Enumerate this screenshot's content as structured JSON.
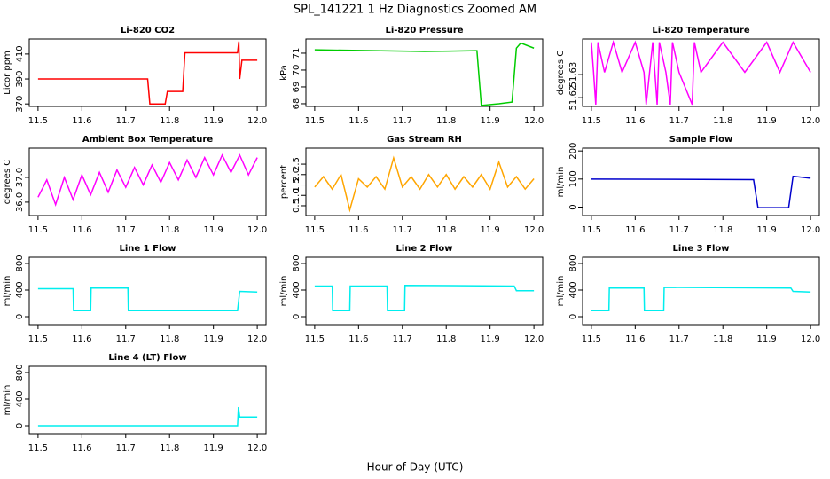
{
  "title": "SPL_141221  1 Hz Diagnostics Zoomed AM",
  "xlabel": "Hour of Day (UTC)",
  "chart_data": [
    {
      "type": "line",
      "title": "Li-820 CO2",
      "ylabel": "Licor ppm",
      "xlim": [
        11.48,
        12.02
      ],
      "ylim": [
        368,
        422
      ],
      "xticks": [
        11.5,
        11.6,
        11.7,
        11.8,
        11.9,
        {
          "value": 12,
          "label": "12.0"
        }
      ],
      "yticks": [
        370,
        390,
        410
      ],
      "x": [
        11.5,
        11.75,
        11.755,
        11.79,
        11.795,
        11.83,
        11.835,
        11.955,
        11.958,
        11.96,
        11.965,
        12.0
      ],
      "series": [
        {
          "color": "#ff0000",
          "values": [
            390,
            390,
            370,
            370,
            380,
            380,
            411,
            411,
            420,
            390,
            405,
            405
          ]
        }
      ]
    },
    {
      "type": "line",
      "title": "Li-820 Pressure",
      "ylabel": "kPa",
      "xlim": [
        11.48,
        12.02
      ],
      "ylim": [
        67.84,
        71.84
      ],
      "xticks": [
        11.5,
        11.6,
        11.7,
        11.8,
        11.9,
        {
          "value": 12,
          "label": "12.0"
        }
      ],
      "yticks": [
        68,
        69,
        70,
        71
      ],
      "x": [
        11.5,
        11.75,
        11.87,
        11.88,
        11.92,
        11.95,
        11.96,
        11.97,
        12.0
      ],
      "series": [
        {
          "color": "#00cc00",
          "values": [
            71.2,
            71.1,
            71.15,
            67.9,
            68.0,
            68.1,
            71.3,
            71.6,
            71.3
          ]
        }
      ]
    },
    {
      "type": "line",
      "title": "Li-820 Temperature",
      "ylabel": "degrees C",
      "xlim": [
        11.48,
        12.02
      ],
      "ylim": [
        51.6162,
        51.6454
      ],
      "xticks": [
        11.5,
        11.6,
        11.7,
        11.8,
        11.9,
        {
          "value": 12,
          "label": "12.0"
        }
      ],
      "yticks": [
        51.62,
        51.63
      ],
      "x": [
        11.5,
        11.505,
        11.51,
        11.515,
        11.53,
        11.55,
        11.57,
        11.6,
        11.62,
        11.625,
        11.64,
        11.65,
        11.655,
        11.67,
        11.68,
        11.685,
        11.7,
        11.73,
        11.735,
        11.75,
        11.8,
        11.85,
        11.9,
        11.93,
        11.96,
        12.0
      ],
      "series": [
        {
          "color": "#ff00ff",
          "values": [
            51.644,
            51.631,
            51.617,
            51.644,
            51.631,
            51.644,
            51.631,
            51.644,
            51.631,
            51.617,
            51.644,
            51.617,
            51.644,
            51.631,
            51.617,
            51.644,
            51.631,
            51.617,
            51.644,
            51.631,
            51.644,
            51.631,
            51.644,
            51.631,
            51.644,
            51.631
          ]
        }
      ]
    },
    {
      "type": "line",
      "title": "Ambient Box Temperature",
      "ylabel": "degrees C",
      "xlim": [
        11.48,
        12.02
      ],
      "ylim": [
        35.46,
        38.18
      ],
      "xticks": [
        11.5,
        11.6,
        11.7,
        11.8,
        11.9,
        {
          "value": 12,
          "label": "12.0"
        }
      ],
      "yticks": [
        {
          "value": 36,
          "label": "36.0"
        },
        {
          "value": 37,
          "label": "37.0"
        }
      ],
      "x": [
        11.5,
        11.52,
        11.54,
        11.56,
        11.58,
        11.6,
        11.62,
        11.64,
        11.66,
        11.68,
        11.7,
        11.72,
        11.74,
        11.76,
        11.78,
        11.8,
        11.82,
        11.84,
        11.86,
        11.88,
        11.9,
        11.92,
        11.94,
        11.96,
        11.98,
        12.0
      ],
      "series": [
        {
          "color": "#ff00ff",
          "values": [
            36.2,
            36.9,
            35.9,
            37.0,
            36.1,
            37.1,
            36.3,
            37.2,
            36.4,
            37.3,
            36.6,
            37.4,
            36.7,
            37.5,
            36.8,
            37.6,
            36.9,
            37.7,
            37.0,
            37.8,
            37.1,
            37.9,
            37.2,
            37.9,
            37.1,
            37.8
          ]
        }
      ]
    },
    {
      "type": "line",
      "title": "Gas Stream RH",
      "ylabel": "percent",
      "xlim": [
        11.48,
        12.02
      ],
      "ylim": [
        0.03,
        3.27
      ],
      "xticks": [
        11.5,
        11.6,
        11.7,
        11.8,
        11.9,
        {
          "value": 12,
          "label": "12.0"
        }
      ],
      "yticks": [
        0.5,
        {
          "value": 1,
          "label": "1.0"
        },
        1.5,
        {
          "value": 2,
          "label": "2.0"
        },
        2.5
      ],
      "x": [
        11.5,
        11.52,
        11.54,
        11.56,
        11.58,
        11.6,
        11.62,
        11.64,
        11.66,
        11.68,
        11.7,
        11.72,
        11.74,
        11.76,
        11.78,
        11.8,
        11.82,
        11.84,
        11.86,
        11.88,
        11.9,
        11.92,
        11.94,
        11.96,
        11.98,
        12.0
      ],
      "series": [
        {
          "color": "#ffa500",
          "values": [
            1.4,
            1.9,
            1.3,
            2.0,
            0.3,
            1.8,
            1.4,
            1.9,
            1.3,
            2.8,
            1.4,
            1.9,
            1.3,
            2.0,
            1.4,
            2.0,
            1.3,
            1.9,
            1.4,
            2.0,
            1.3,
            2.6,
            1.4,
            1.9,
            1.3,
            1.8
          ]
        }
      ]
    },
    {
      "type": "line",
      "title": "Sample Flow",
      "ylabel": "ml/min",
      "xlim": [
        11.48,
        12.02
      ],
      "ylim": [
        -30,
        210
      ],
      "xticks": [
        11.5,
        11.6,
        11.7,
        11.8,
        11.9,
        {
          "value": 12,
          "label": "12.0"
        }
      ],
      "yticks": [
        0,
        100,
        200
      ],
      "x": [
        11.5,
        11.87,
        11.88,
        11.95,
        11.96,
        12.0
      ],
      "series": [
        {
          "color": "#0000cc",
          "values": [
            100,
            98,
            -2,
            -2,
            110,
            103
          ]
        }
      ]
    },
    {
      "type": "line",
      "title": "Line 1 Flow",
      "ylabel": "ml/min",
      "xlim": [
        11.48,
        12.02
      ],
      "ylim": [
        -120,
        893
      ],
      "xticks": [
        11.5,
        11.6,
        11.7,
        11.8,
        11.9,
        {
          "value": 12,
          "label": "12.0"
        }
      ],
      "yticks": [
        0,
        400,
        800
      ],
      "x": [
        11.5,
        11.58,
        11.581,
        11.62,
        11.621,
        11.705,
        11.706,
        11.955,
        11.96,
        12.0
      ],
      "series": [
        {
          "color": "#00eeee",
          "values": [
            420,
            420,
            90,
            90,
            430,
            430,
            90,
            90,
            380,
            370
          ]
        }
      ]
    },
    {
      "type": "line",
      "title": "Line 2 Flow",
      "ylabel": "ml/min",
      "xlim": [
        11.48,
        12.02
      ],
      "ylim": [
        -120,
        893
      ],
      "xticks": [
        11.5,
        11.6,
        11.7,
        11.8,
        11.9,
        {
          "value": 12,
          "label": "12.0"
        }
      ],
      "yticks": [
        0,
        400,
        800
      ],
      "x": [
        11.5,
        11.54,
        11.541,
        11.58,
        11.581,
        11.665,
        11.666,
        11.705,
        11.706,
        11.955,
        11.96,
        12.0
      ],
      "series": [
        {
          "color": "#00eeee",
          "values": [
            460,
            460,
            90,
            90,
            460,
            460,
            90,
            90,
            470,
            460,
            390,
            390
          ]
        }
      ]
    },
    {
      "type": "line",
      "title": "Line 3 Flow",
      "ylabel": "ml/min",
      "xlim": [
        11.48,
        12.02
      ],
      "ylim": [
        -120,
        893
      ],
      "xticks": [
        11.5,
        11.6,
        11.7,
        11.8,
        11.9,
        {
          "value": 12,
          "label": "12.0"
        }
      ],
      "yticks": [
        0,
        400,
        800
      ],
      "x": [
        11.5,
        11.54,
        11.541,
        11.62,
        11.621,
        11.665,
        11.666,
        11.955,
        11.96,
        12.0
      ],
      "series": [
        {
          "color": "#00eeee",
          "values": [
            90,
            90,
            430,
            430,
            90,
            90,
            440,
            430,
            380,
            370
          ]
        }
      ]
    },
    {
      "type": "line",
      "title": "Line 4 (LT) Flow",
      "ylabel": "ml/min",
      "xlim": [
        11.48,
        12.02
      ],
      "ylim": [
        -120,
        893
      ],
      "xticks": [
        11.5,
        11.6,
        11.7,
        11.8,
        11.9,
        {
          "value": 12,
          "label": "12.0"
        }
      ],
      "yticks": [
        0,
        400,
        800
      ],
      "x": [
        11.5,
        11.955,
        11.957,
        11.96,
        12.0
      ],
      "series": [
        {
          "color": "#00eeee",
          "values": [
            0,
            0,
            280,
            130,
            130
          ]
        }
      ]
    }
  ]
}
